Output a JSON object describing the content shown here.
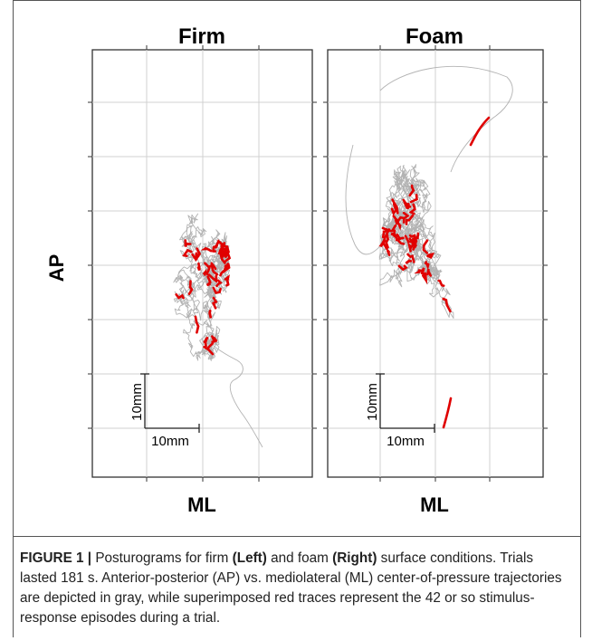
{
  "chart_data": [
    {
      "type": "line",
      "title": "Firm",
      "xlabel": "ML",
      "ylabel": "AP",
      "grid": true,
      "scale_bar": {
        "x_label": "10mm",
        "y_label": "10mm"
      },
      "series": [
        {
          "color": "#b3b3b3"
        },
        {
          "color": "#e00000"
        }
      ]
    },
    {
      "type": "line",
      "title": "Foam",
      "xlabel": "ML",
      "ylabel": "",
      "grid": true,
      "scale_bar": {
        "x_label": "10mm",
        "y_label": "10mm"
      },
      "series": [
        {
          "color": "#b3b3b3"
        },
        {
          "color": "#e00000"
        }
      ]
    }
  ],
  "caption": {
    "label": "FIGURE 1 |",
    "t1": " Posturograms for firm ",
    "left": "(Left)",
    "t2": " and foam ",
    "right": "(Right)",
    "t3": " surface conditions. Trials lasted 181 s. Anterior-posterior (AP) vs. mediolateral (ML) center-of-pressure trajectories are depicted in gray, while superimposed red traces represent the 42 or so stimulus-response episodes during a trial."
  }
}
